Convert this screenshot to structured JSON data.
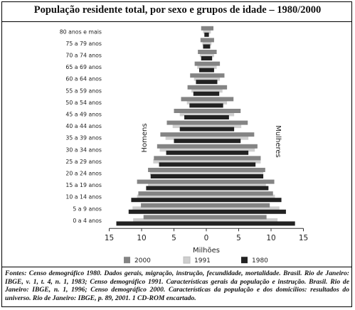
{
  "title": "População residente total, por sexo e grupos de idade – 1980/2000",
  "source": "Fontes: Censo demográfico 1980. Dados gerais, migração, instrução, fecundidade, mortalidade. Brasil. Rio de Janeiro: IBGE, v. 1, t. 4, n. 1, 1983; Censo demográfico 1991. Características gerais da população e instrução. Brasil. Rio de Janeiro: IBGE, n. 1, 1996; Censo demográfico 2000. Características da população e dos domicílios: resultados do universo. Rio de Janeiro: IBGE, p. 89, 2001. 1 CD-ROM encartado.",
  "chart_data": {
    "type": "bar",
    "orientation": "horizontal-population-pyramid",
    "xlabel": "Milhões",
    "left_label": "Homens",
    "right_label": "Mulheres",
    "xlim": [
      -15,
      15
    ],
    "xticks": [
      -15,
      -10,
      -5,
      0,
      5,
      10,
      15
    ],
    "xtick_labels": [
      "15",
      "10",
      "5",
      "0",
      "5",
      "10",
      "15"
    ],
    "categories": [
      "80 anos e mais",
      "75 a 79 anos",
      "70 a 74 anos",
      "65 a 69 anos",
      "60 a 64 anos",
      "55 a 59 anos",
      "50 a 54 anos",
      "45 a 49 anos",
      "40 a 44 anos",
      "35 a 39 anos",
      "30 a 34 anos",
      "25 a 29 anos",
      "20 a 24 anos",
      "15 a 19 anos",
      "10 a 14 anos",
      "5 a 9 anos",
      "0 a 4 anos"
    ],
    "series": [
      {
        "name": "2000",
        "color": "#848484",
        "men": [
          -0.8,
          -0.9,
          -1.3,
          -1.8,
          -2.5,
          -2.9,
          -3.9,
          -5.0,
          -6.1,
          -7.1,
          -7.6,
          -8.1,
          -9.0,
          -10.7,
          -10.5,
          -10.1,
          -9.7
        ],
        "women": [
          1.1,
          1.2,
          1.6,
          2.1,
          2.8,
          3.2,
          4.2,
          5.3,
          6.4,
          7.4,
          7.9,
          8.4,
          9.1,
          10.5,
          10.3,
          9.8,
          9.3
        ]
      },
      {
        "name": "1991",
        "color": "#cfcfcf",
        "men": [
          -0.5,
          -0.6,
          -1.0,
          -1.4,
          -1.9,
          -2.3,
          -3.0,
          -4.1,
          -5.2,
          -6.3,
          -7.2,
          -8.2,
          -8.7,
          -9.0,
          -10.7,
          -11.4,
          -11.3
        ],
        "women": [
          0.7,
          0.8,
          1.2,
          1.6,
          2.1,
          2.5,
          3.2,
          4.3,
          5.4,
          6.5,
          7.5,
          8.4,
          8.8,
          9.2,
          10.6,
          11.3,
          11.0
        ]
      },
      {
        "name": "1980",
        "color": "#222222",
        "men": [
          -0.3,
          -0.5,
          -0.8,
          -1.1,
          -1.6,
          -2.0,
          -2.6,
          -3.4,
          -4.1,
          -5.0,
          -6.2,
          -7.3,
          -8.6,
          -9.3,
          -11.6,
          -12.0,
          -13.9
        ],
        "women": [
          0.4,
          0.6,
          0.9,
          1.2,
          1.7,
          2.0,
          2.6,
          3.5,
          4.3,
          5.3,
          6.5,
          7.6,
          8.8,
          9.6,
          11.6,
          12.3,
          13.7
        ]
      }
    ],
    "legend": [
      "2000",
      "1991",
      "1980"
    ],
    "legend_position": "bottom",
    "grid": false
  }
}
